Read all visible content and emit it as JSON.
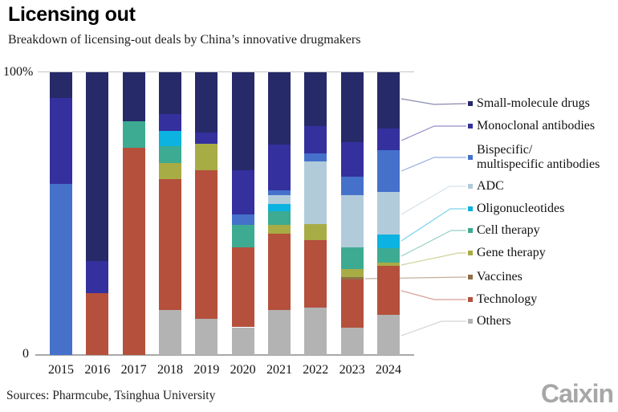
{
  "header": {
    "title": "Licensing out",
    "subtitle": "Breakdown of licensing-out deals by China’s innovative drugmakers"
  },
  "axis": {
    "y_top": "100%",
    "y_bottom": "0"
  },
  "chart_data": {
    "type": "bar",
    "stacked": true,
    "unit": "percent share of deals",
    "title": "Licensing out",
    "subtitle": "Breakdown of licensing-out deals by China’s innovative drugmakers",
    "categories": [
      "2015",
      "2016",
      "2017",
      "2018",
      "2019",
      "2020",
      "2021",
      "2022",
      "2023",
      "2024"
    ],
    "ylim": [
      0,
      100
    ],
    "grid": false,
    "legend_position": "right",
    "series": [
      {
        "name": "Small-molecule drugs",
        "color": "#262a68",
        "values": [
          9.2,
          66.9,
          17.4,
          14.7,
          21.4,
          34.8,
          25.5,
          18.9,
          24.6,
          19.8
        ]
      },
      {
        "name": "Monoclonal antibodies",
        "color": "#34309e",
        "values": [
          30.4,
          11.1,
          0,
          5.9,
          3.9,
          15.5,
          16.2,
          9.9,
          12.3,
          7.8
        ]
      },
      {
        "name": "Bispecific/multispecific antibodies",
        "color": "#4571cb",
        "legend_lines": [
          "Bispecific/",
          "multispecific antibodies"
        ],
        "values": [
          60.4,
          0,
          0,
          0,
          0,
          3.6,
          1.9,
          2.8,
          6.6,
          14.6
        ]
      },
      {
        "name": "ADC",
        "color": "#b2cbdb",
        "values": [
          0,
          0,
          0,
          0,
          0,
          0,
          3.1,
          22.0,
          18.4,
          15.3
        ]
      },
      {
        "name": "Oligonucleotides",
        "color": "#0cb2e0",
        "values": [
          0,
          0,
          0,
          5.4,
          0,
          0,
          2.4,
          0,
          0,
          4.7
        ]
      },
      {
        "name": "Cell therapy",
        "color": "#3dab92",
        "values": [
          0,
          0,
          9.2,
          6.2,
          0,
          8.0,
          4.9,
          0,
          7.8,
          5.2
        ]
      },
      {
        "name": "Gene therapy",
        "color": "#a8ac45",
        "values": [
          0,
          0,
          0,
          5.7,
          9.5,
          0,
          3.1,
          5.7,
          2.8,
          1.2
        ]
      },
      {
        "name": "Vaccines",
        "color": "#8f6f47",
        "values": [
          0,
          0,
          0,
          0,
          0,
          0,
          0,
          0,
          0.8,
          0
        ]
      },
      {
        "name": "Technology",
        "color": "#b5503c",
        "values": [
          0,
          22.0,
          73.4,
          46.3,
          52.5,
          28.3,
          26.9,
          24.0,
          16.9,
          17.3
        ]
      },
      {
        "name": "Others",
        "color": "#b3b3b3",
        "values": [
          0,
          0,
          0,
          15.8,
          12.7,
          9.8,
          16.1,
          16.7,
          9.8,
          14.1
        ]
      }
    ]
  },
  "footer": {
    "sources": "Sources: Pharmcube, Tsinghua University",
    "brand": "Caixin"
  }
}
